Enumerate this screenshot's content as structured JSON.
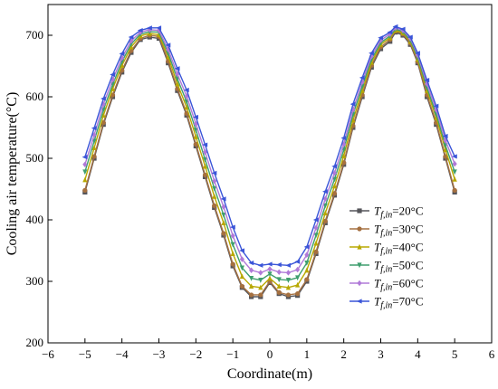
{
  "chart_data": {
    "type": "line",
    "title": "",
    "xlabel": "Coordinate(m)",
    "ylabel": "Cooling air temperature(°C)",
    "xlim": [
      -6,
      6
    ],
    "ylim": [
      200,
      750
    ],
    "xticks": [
      -6,
      -5,
      -4,
      -3,
      -2,
      -1,
      0,
      1,
      2,
      3,
      4,
      5,
      6
    ],
    "yticks": [
      200,
      300,
      400,
      500,
      600,
      700
    ],
    "grid": false,
    "legend_position": "center-right",
    "x": [
      -5,
      -4.75,
      -4.5,
      -4.25,
      -4,
      -3.75,
      -3.5,
      -3.25,
      -3,
      -2.75,
      -2.5,
      -2.25,
      -2,
      -1.75,
      -1.5,
      -1.25,
      -1,
      -0.75,
      -0.5,
      -0.25,
      0,
      0.25,
      0.5,
      0.75,
      1,
      1.25,
      1.5,
      1.75,
      2,
      2.25,
      2.5,
      2.75,
      3,
      3.25,
      3.4,
      3.6,
      3.8,
      4,
      4.25,
      4.5,
      4.75,
      5
    ],
    "series": [
      {
        "label_main": "T",
        "label_sub": "f,in",
        "label_rest": "=20°C",
        "color": "#55555a",
        "marker": "square",
        "values": [
          445,
          500,
          555,
          600,
          640,
          672,
          693,
          697,
          695,
          655,
          610,
          570,
          520,
          470,
          420,
          375,
          325,
          290,
          275,
          275,
          298,
          280,
          275,
          277,
          300,
          345,
          395,
          440,
          490,
          550,
          600,
          648,
          678,
          690,
          705,
          700,
          685,
          655,
          600,
          555,
          500,
          445
        ]
      },
      {
        "label_main": "T",
        "label_sub": "f,in",
        "label_rest": "=30°C",
        "color": "#a57040",
        "marker": "circle",
        "values": [
          448,
          503,
          558,
          603,
          643,
          675,
          695,
          700,
          698,
          658,
          613,
          573,
          523,
          473,
          423,
          378,
          328,
          292,
          278,
          278,
          300,
          282,
          278,
          280,
          303,
          348,
          398,
          443,
          493,
          553,
          603,
          651,
          681,
          693,
          707,
          702,
          687,
          657,
          603,
          558,
          503,
          448
        ]
      },
      {
        "label_main": "T",
        "label_sub": "f,in",
        "label_rest": "=40°C",
        "color": "#b8a800",
        "marker": "triangle-up",
        "values": [
          465,
          517,
          570,
          613,
          651,
          681,
          699,
          703,
          701,
          665,
          621,
          583,
          535,
          487,
          438,
          395,
          345,
          308,
          292,
          290,
          305,
          292,
          290,
          294,
          318,
          362,
          411,
          455,
          504,
          562,
          610,
          656,
          685,
          696,
          708,
          704,
          690,
          661,
          610,
          566,
          514,
          466
        ]
      },
      {
        "label_main": "T",
        "label_sub": "f,in",
        "label_rest": "=50°C",
        "color": "#3e9e6e",
        "marker": "triangle-down",
        "values": [
          478,
          528,
          579,
          620,
          657,
          686,
          702,
          706,
          705,
          671,
          629,
          592,
          546,
          498,
          451,
          408,
          360,
          322,
          305,
          302,
          312,
          303,
          302,
          306,
          330,
          375,
          423,
          466,
          514,
          571,
          617,
          661,
          688,
          699,
          710,
          706,
          692,
          664,
          615,
          572,
          521,
          478
        ]
      },
      {
        "label_main": "T",
        "label_sub": "f,in",
        "label_rest": "=60°C",
        "color": "#b07ad8",
        "marker": "diamond",
        "values": [
          490,
          538,
          588,
          628,
          663,
          691,
          705,
          709,
          708,
          677,
          637,
          601,
          556,
          510,
          463,
          421,
          374,
          336,
          318,
          314,
          320,
          315,
          314,
          319,
          343,
          387,
          434,
          476,
          523,
          579,
          624,
          666,
          692,
          702,
          712,
          708,
          695,
          668,
          621,
          579,
          529,
          491
        ]
      },
      {
        "label_main": "T",
        "label_sub": "f,in",
        "label_rest": "=70°C",
        "color": "#3a55d8",
        "marker": "triangle-left",
        "values": [
          502,
          549,
          597,
          636,
          670,
          697,
          708,
          712,
          712,
          684,
          646,
          611,
          567,
          522,
          476,
          434,
          388,
          350,
          330,
          326,
          328,
          327,
          326,
          332,
          356,
          400,
          446,
          487,
          533,
          588,
          631,
          671,
          696,
          705,
          714,
          710,
          697,
          671,
          627,
          585,
          536,
          503
        ]
      }
    ]
  }
}
